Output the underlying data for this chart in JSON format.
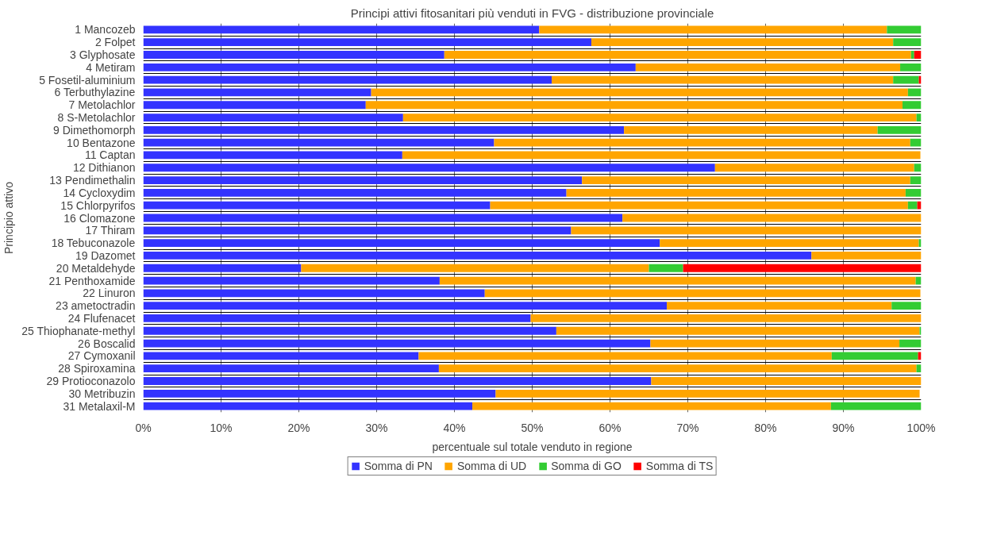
{
  "chart_data": {
    "type": "bar",
    "orientation": "horizontal",
    "stacked": true,
    "title": "Principi attivi fitosanitari più venduti in FVG - distribuzione provinciale",
    "xlabel": "percentuale sul totale venduto in regione",
    "ylabel": "Principio attivo",
    "categories": [
      "1 Mancozeb",
      "2 Folpet",
      "3 Glyphosate",
      "4 Metiram",
      "5 Fosetil-aluminium",
      "6 Terbuthylazine",
      "7 Metolachlor",
      "8 S-Metolachlor",
      "9 Dimethomorph",
      "10 Bentazone",
      "11 Captan",
      "12 Dithianon",
      "13 Pendimethalin",
      "14 Cycloxydim",
      "15 Chlorpyrifos",
      "16 Clomazone",
      "17 Thiram",
      "18 Tebuconazole",
      "19 Dazomet",
      "20 Metaldehyde",
      "21 Penthoxamide",
      "22 Linuron",
      "23 ametoctradin",
      "24 Flufenacet",
      "25 Thiophanate-methyl",
      "26 Boscalid",
      "27 Cymoxanil",
      "28 Spiroxamina",
      "29 Protioconazolo",
      "30 Metribuzin",
      "31 Metalaxil-M"
    ],
    "series": [
      {
        "name": "Somma di PN",
        "color": "#3333ff",
        "values": [
          50.9,
          57.6,
          38.7,
          63.3,
          52.5,
          29.3,
          28.6,
          33.4,
          61.8,
          45.1,
          33.3,
          73.5,
          56.4,
          54.4,
          44.6,
          61.6,
          55.0,
          66.4,
          85.9,
          20.3,
          38.1,
          43.9,
          67.3,
          49.8,
          53.1,
          65.2,
          35.4,
          38.0,
          65.3,
          45.3,
          42.3
        ]
      },
      {
        "name": "Somma di UD",
        "color": "#ffa500",
        "values": [
          44.7,
          38.8,
          60.0,
          34.0,
          43.9,
          69.0,
          69.0,
          66.0,
          32.6,
          53.5,
          66.6,
          25.6,
          42.2,
          43.6,
          53.7,
          38.4,
          45.0,
          33.3,
          14.1,
          44.7,
          61.2,
          56.0,
          28.9,
          50.2,
          46.7,
          32.0,
          53.1,
          61.4,
          34.7,
          54.5,
          46.1
        ]
      },
      {
        "name": "Somma di GO",
        "color": "#33cc33",
        "values": [
          4.4,
          3.6,
          0.4,
          2.7,
          3.3,
          1.7,
          2.4,
          0.6,
          5.6,
          1.4,
          null,
          0.9,
          1.4,
          2.0,
          1.2,
          0,
          0,
          0.3,
          0,
          4.4,
          0.7,
          null,
          3.8,
          0,
          0.2,
          2.8,
          11.1,
          0.6,
          0,
          null,
          11.6
        ]
      },
      {
        "name": "Somma di TS",
        "color": "#ff0000",
        "values": [
          0,
          0,
          0.9,
          0,
          0.3,
          0,
          0,
          0,
          0,
          0,
          0,
          0,
          0,
          0,
          0.5,
          0,
          0,
          0,
          0,
          30.6,
          0,
          0,
          0,
          0,
          0,
          0,
          0.4,
          0,
          0,
          0,
          0
        ]
      }
    ],
    "xlim": [
      0,
      100
    ],
    "xticks": [
      {
        "value": 0,
        "label": "0%"
      },
      {
        "value": 10,
        "label": "10%"
      },
      {
        "value": 20,
        "label": "20%"
      },
      {
        "value": 30,
        "label": "30%"
      },
      {
        "value": 40,
        "label": "40%"
      },
      {
        "value": 50,
        "label": "50%"
      },
      {
        "value": 60,
        "label": "60%"
      },
      {
        "value": 70,
        "label": "70%"
      },
      {
        "value": 80,
        "label": "80%"
      },
      {
        "value": 90,
        "label": "90%"
      },
      {
        "value": 100,
        "label": "100%"
      }
    ],
    "grid": true,
    "legend": "bottom"
  }
}
